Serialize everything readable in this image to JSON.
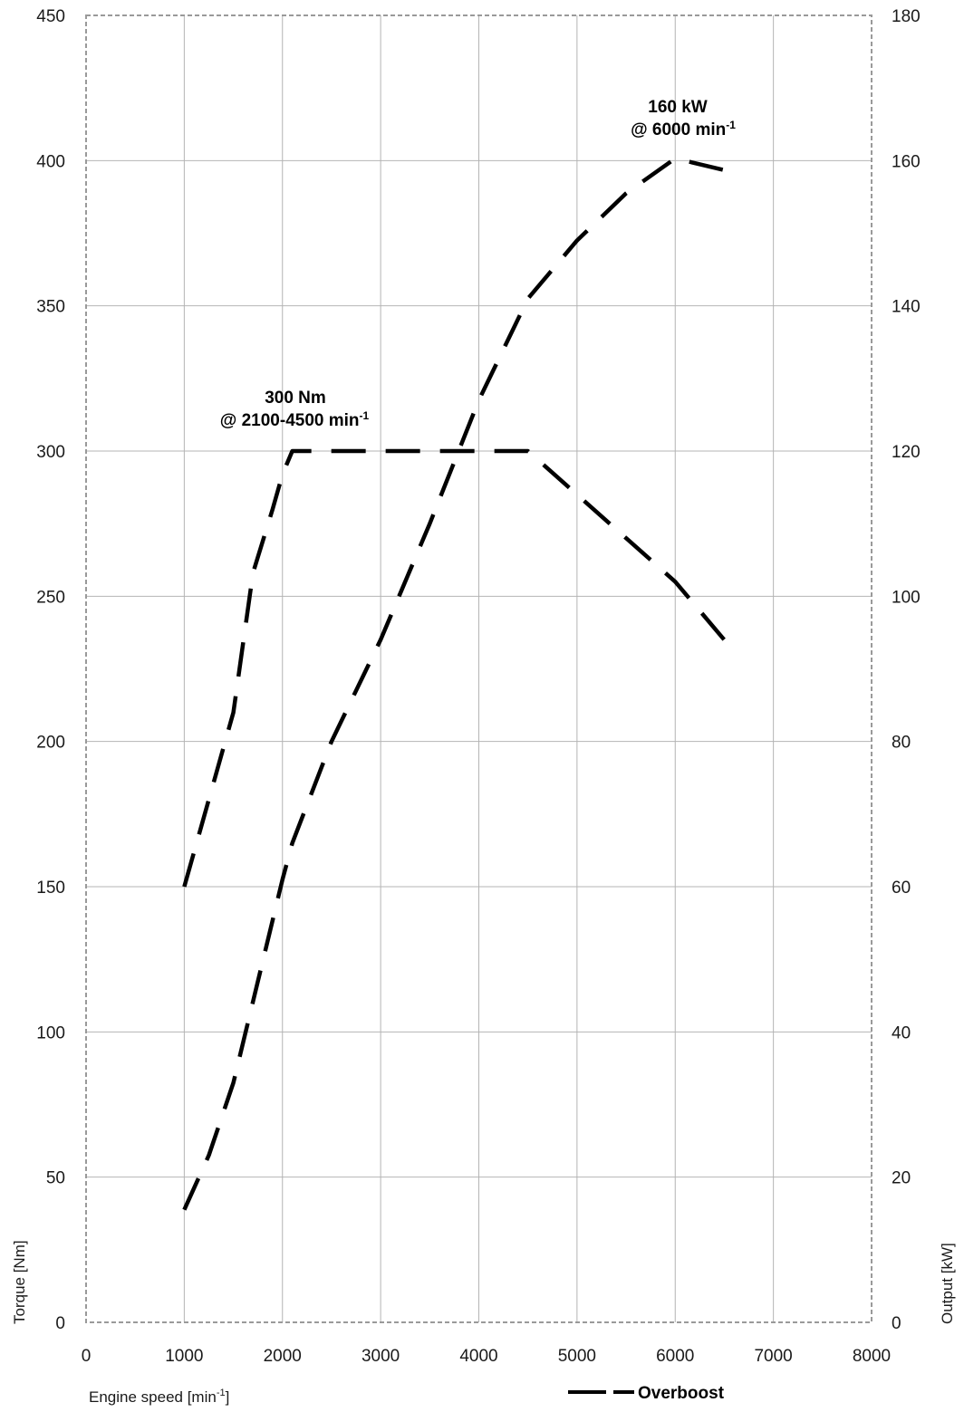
{
  "chart_data": {
    "type": "line",
    "title": "",
    "xlabel": "Engine speed [min",
    "xlabel_sup": "-1",
    "xlabel_suffix": "]",
    "ylabel_left": "Torque [Nm]",
    "ylabel_right": "Output [kW]",
    "xlim": [
      0,
      8000
    ],
    "ylim_left": [
      0,
      450
    ],
    "ylim_right": [
      0,
      180
    ],
    "x_ticks": [
      "0",
      "1000",
      "2000",
      "3000",
      "4000",
      "5000",
      "6000",
      "7000",
      "8000"
    ],
    "y_left_ticks": [
      "0",
      "50",
      "100",
      "150",
      "200",
      "250",
      "300",
      "350",
      "400",
      "450"
    ],
    "y_right_ticks": [
      "0",
      "20",
      "40",
      "60",
      "80",
      "100",
      "120",
      "140",
      "160",
      "180"
    ],
    "grid": true,
    "legend": {
      "position": "bottom-right",
      "label": "Overboost"
    },
    "series": [
      {
        "name": "Overboost",
        "axis": "left",
        "quantity": "torque",
        "x": [
          1000,
          1250,
          1500,
          1700,
          1900,
          2000,
          2100,
          2500,
          3000,
          3500,
          4000,
          4500,
          5000,
          5500,
          6000,
          6500
        ],
        "y": [
          150,
          180,
          210,
          258,
          280,
          292,
          300,
          300,
          300,
          300,
          300,
          300,
          285,
          270,
          255,
          235
        ]
      },
      {
        "name": "Overboost",
        "axis": "right",
        "quantity": "output",
        "x": [
          1000,
          1250,
          1500,
          1750,
          2000,
          2100,
          2500,
          3000,
          3500,
          4000,
          4500,
          5000,
          5500,
          6000,
          6500
        ],
        "y": [
          15.5,
          23,
          33,
          47,
          61,
          66,
          80,
          94,
          110,
          127,
          141,
          149,
          155.5,
          160.3,
          158.7
        ]
      }
    ],
    "annotations": [
      {
        "id": "torque",
        "line1": "300 Nm",
        "line2": "@ 2100-4500 min",
        "sup": "-1"
      },
      {
        "id": "power",
        "line1": "160 kW",
        "line2": "@ 6000 min",
        "sup": "-1"
      }
    ],
    "colors": {
      "line": "#000000",
      "grid": "#b4b4b4",
      "frame": "#9a9a9a"
    }
  }
}
